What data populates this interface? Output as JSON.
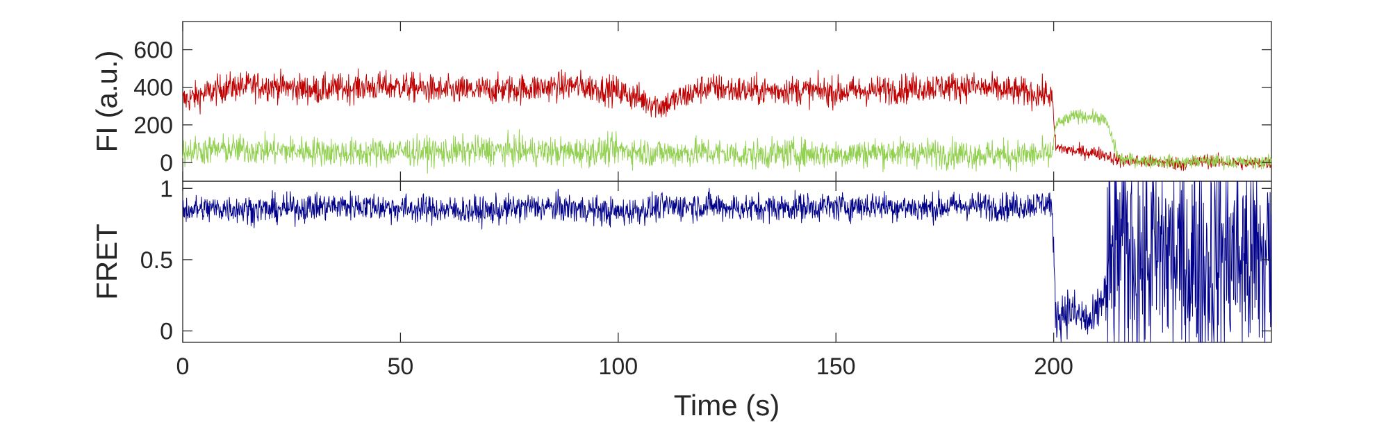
{
  "chart_data": [
    {
      "type": "line",
      "ylabel": "FI (a.u.)",
      "xlim": [
        0,
        250
      ],
      "ylim": [
        -100,
        750
      ],
      "yticks": [
        0,
        200,
        400,
        600
      ],
      "ytick_labels": [
        "0",
        "200",
        "400",
        "600"
      ],
      "grid": false,
      "series": [
        {
          "color": "#c00000",
          "x": [
            0,
            10,
            20,
            30,
            40,
            50,
            60,
            70,
            80,
            90,
            100,
            110,
            120,
            130,
            140,
            150,
            160,
            170,
            180,
            190,
            199.5,
            200.5,
            205,
            210,
            212,
            215,
            220,
            225,
            230,
            235,
            240,
            245,
            250
          ],
          "values": [
            330,
            400,
            410,
            385,
            400,
            405,
            380,
            385,
            395,
            410,
            380,
            300,
            400,
            380,
            385,
            375,
            385,
            400,
            405,
            380,
            360,
            80,
            60,
            50,
            40,
            10,
            5,
            0,
            -10,
            10,
            0,
            -5,
            0
          ]
        },
        {
          "color": "#92d050",
          "x": [
            0,
            10,
            20,
            30,
            40,
            50,
            60,
            70,
            80,
            90,
            100,
            110,
            120,
            130,
            140,
            150,
            160,
            170,
            180,
            190,
            199.5,
            200.5,
            205,
            210,
            212,
            215,
            220,
            225,
            230,
            235,
            240,
            245,
            250
          ],
          "values": [
            60,
            70,
            65,
            60,
            50,
            60,
            55,
            65,
            60,
            55,
            65,
            50,
            55,
            40,
            50,
            45,
            55,
            50,
            45,
            40,
            40,
            200,
            250,
            240,
            220,
            20,
            10,
            5,
            0,
            10,
            5,
            0,
            5
          ]
        }
      ]
    },
    {
      "type": "line",
      "xlabel": "Time (s)",
      "ylabel": "FRET",
      "xlim": [
        0,
        250
      ],
      "ylim": [
        -0.08,
        1.05
      ],
      "xticks": [
        0,
        50,
        100,
        150,
        200
      ],
      "xtick_labels": [
        "0",
        "50",
        "100",
        "150",
        "200"
      ],
      "yticks": [
        0,
        0.5,
        1
      ],
      "ytick_labels": [
        "0",
        "0.5",
        "1"
      ],
      "grid": false,
      "series": [
        {
          "color": "#00008b",
          "x": [
            0,
            10,
            20,
            30,
            40,
            50,
            60,
            70,
            80,
            90,
            100,
            110,
            120,
            130,
            140,
            150,
            160,
            170,
            180,
            190,
            199.5,
            200.5,
            203,
            206,
            209,
            212,
            215,
            220,
            225,
            230,
            235,
            240,
            245,
            250
          ],
          "values": [
            0.85,
            0.86,
            0.85,
            0.87,
            0.88,
            0.86,
            0.85,
            0.84,
            0.87,
            0.86,
            0.83,
            0.87,
            0.88,
            0.86,
            0.87,
            0.87,
            0.88,
            0.86,
            0.88,
            0.87,
            0.9,
            0.1,
            0.15,
            0.1,
            0.05,
            0.3,
            0.6,
            0.5,
            0.55,
            0.5,
            0.45,
            0.55,
            0.5,
            0.5
          ]
        }
      ]
    }
  ]
}
